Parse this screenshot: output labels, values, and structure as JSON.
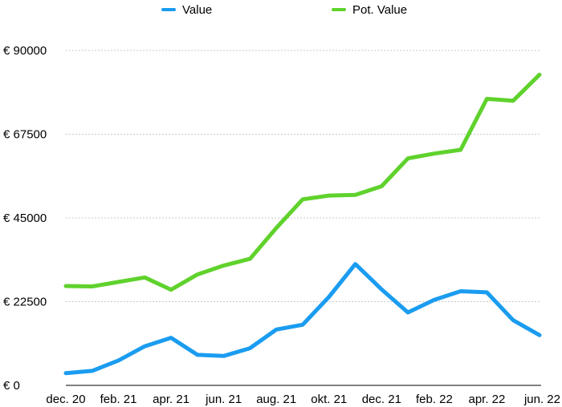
{
  "chart_data": {
    "type": "line",
    "title": "",
    "xlabel": "",
    "ylabel": "",
    "x": [
      "dec. 20",
      "jan. 21",
      "feb. 21",
      "mar. 21",
      "apr. 21",
      "mei 21",
      "jun. 21",
      "jul. 21",
      "aug. 21",
      "sep. 21",
      "okt. 21",
      "nov. 21",
      "dec. 21",
      "jan. 22",
      "feb. 22",
      "mrt. 22",
      "apr. 22",
      "mei 22",
      "jun. 22"
    ],
    "x_tick_labels": [
      "dec. 20",
      "feb. 21",
      "apr. 21",
      "jun. 21",
      "aug. 21",
      "okt. 21",
      "dec. 21",
      "feb. 22",
      "apr. 22",
      "jun. 22"
    ],
    "y_ticks": [
      0,
      22500,
      45000,
      67500,
      90000
    ],
    "y_tick_labels": [
      "€ 0",
      "€ 22500",
      "€ 45000",
      "€ 67500",
      "€ 90000"
    ],
    "ylim": [
      0,
      90000
    ],
    "grid": true,
    "legend_position": "top",
    "series": [
      {
        "name": "Value",
        "color": "#1a9cf0",
        "values": [
          3300,
          3900,
          6700,
          10500,
          12800,
          8200,
          7900,
          10000,
          15000,
          16300,
          23800,
          32600,
          25800,
          19600,
          23000,
          25300,
          25000,
          17500,
          13500
        ]
      },
      {
        "name": "Pot. Value",
        "color": "#5fd22c",
        "values": [
          26700,
          26600,
          27800,
          29000,
          25700,
          29800,
          32200,
          34000,
          42300,
          50000,
          51000,
          51200,
          53500,
          61000,
          62300,
          63300,
          77000,
          76500,
          83500
        ]
      }
    ]
  }
}
